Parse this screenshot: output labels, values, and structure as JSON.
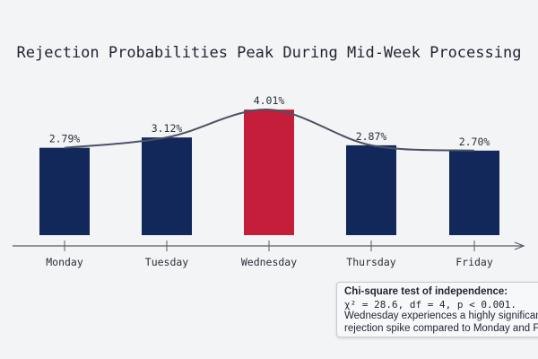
{
  "chart_data": {
    "type": "bar",
    "title": "Rejection Probabilities Peak During Mid-Week Processing",
    "categories": [
      "Monday",
      "Tuesday",
      "Wednesday",
      "Thursday",
      "Friday"
    ],
    "values": [
      2.79,
      3.12,
      4.01,
      2.87,
      2.7
    ],
    "value_labels": [
      "2.79%",
      "3.12%",
      "4.01%",
      "2.87%",
      "2.70%"
    ],
    "ylim": [
      0,
      4.3
    ],
    "highlight_index": 2,
    "grid": false,
    "trend_curve": true,
    "colors": {
      "bar": "#13285a",
      "highlight": "#c41e3a",
      "curve": "#4a5263",
      "axis": "#555b66"
    },
    "annotation": {
      "heading": "Chi-square test of independence:",
      "stat": "χ² = 28.6, df = 4, p < 0.001.",
      "text": "Wednesday experiences a highly significant rejection spike compared to Monday and Friday."
    }
  }
}
